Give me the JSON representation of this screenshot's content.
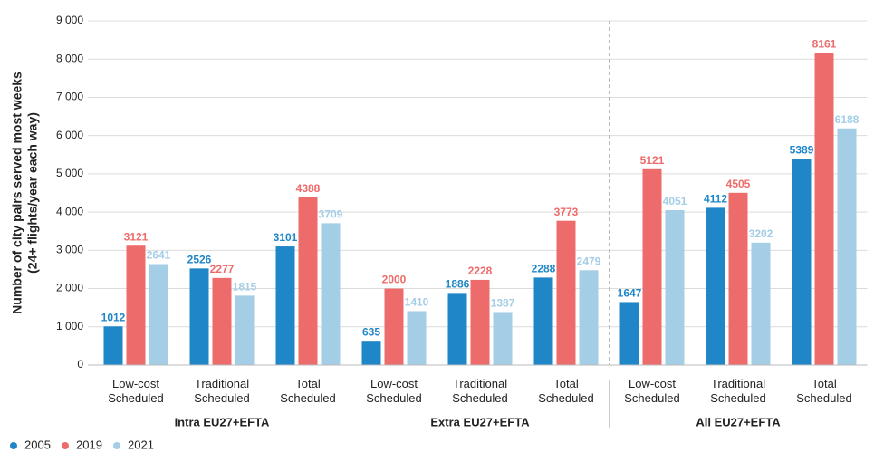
{
  "chart_data": {
    "type": "bar",
    "ylabel": [
      "Number of city pairs served most weeks",
      "(24+ flights/year each way)"
    ],
    "categories": [
      "Low-cost Scheduled",
      "Traditional Scheduled",
      "Total Scheduled",
      "Low-cost Scheduled",
      "Traditional Scheduled",
      "Total Scheduled",
      "Low-cost Scheduled",
      "Traditional Scheduled",
      "Total Scheduled"
    ],
    "groups": [
      {
        "label": "Intra EU27+EFTA",
        "size": 3
      },
      {
        "label": "Extra EU27+EFTA",
        "size": 3
      },
      {
        "label": "All EU27+EFTA",
        "size": 3
      }
    ],
    "series": [
      {
        "name": "2005",
        "color": "#1f86c8",
        "values": [
          1012,
          2526,
          3101,
          635,
          1886,
          2288,
          1647,
          4112,
          5389
        ]
      },
      {
        "name": "2019",
        "color": "#ee6b6b",
        "values": [
          3121,
          2277,
          4388,
          2000,
          2228,
          3773,
          5121,
          4505,
          8161
        ]
      },
      {
        "name": "2021",
        "color": "#a4cde6",
        "values": [
          2641,
          1815,
          3709,
          1410,
          1387,
          2479,
          4051,
          3202,
          6188
        ]
      }
    ],
    "ylim": [
      0,
      9000
    ],
    "yticks": [
      0,
      {
        "value": 1000,
        "label": "1 000"
      },
      {
        "value": 2000,
        "label": "2 000"
      },
      {
        "value": 3000,
        "label": "3 000"
      },
      {
        "value": 4000,
        "label": "4 000"
      },
      {
        "value": 5000,
        "label": "5 000"
      },
      {
        "value": 6000,
        "label": "6 000"
      },
      {
        "value": 7000,
        "label": "7 000"
      },
      {
        "value": 8000,
        "label": "8 000"
      },
      {
        "value": 9000,
        "label": "9 000"
      }
    ],
    "grid": true,
    "legend": "bottom-left"
  }
}
